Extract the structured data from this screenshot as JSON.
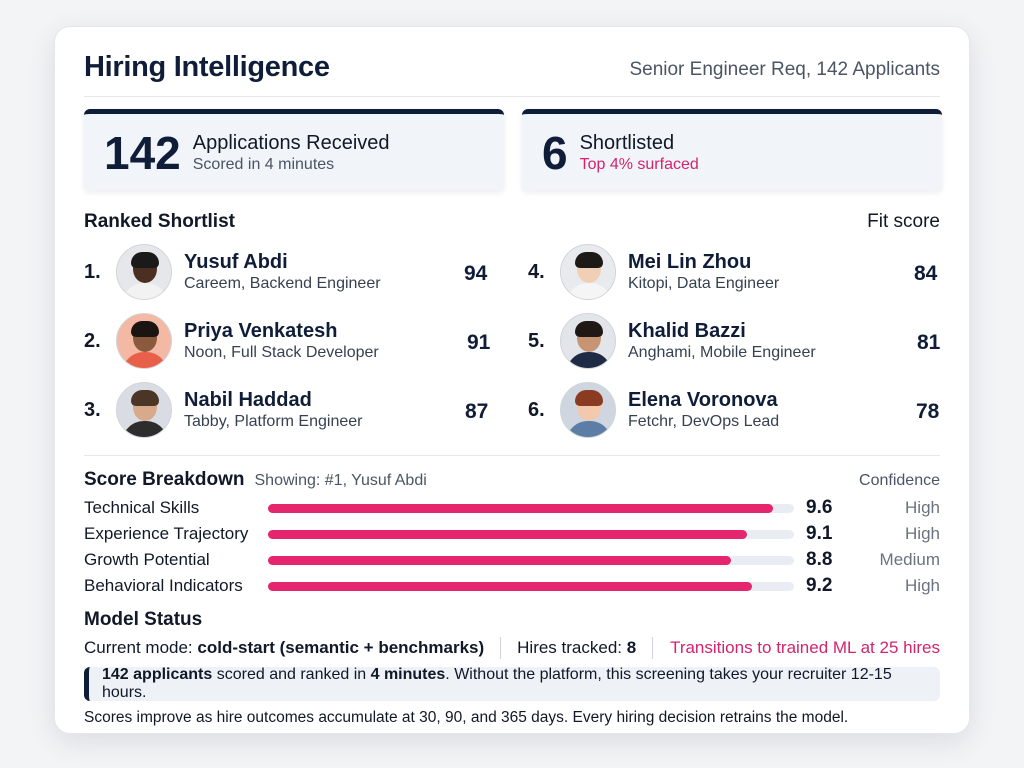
{
  "header": {
    "title": "Hiring Intelligence",
    "subtitle": "Senior Engineer Req, 142 Applicants"
  },
  "stats": [
    {
      "number": "142",
      "label": "Applications Received",
      "sub": "Scored in 4 minutes"
    },
    {
      "number": "6",
      "label": "Shortlisted",
      "sub": "Top 4% surfaced"
    }
  ],
  "shortlist": {
    "title": "Ranked Shortlist",
    "fit_label": "Fit score",
    "candidates": [
      {
        "rank": "1.",
        "name": "Yusuf Abdi",
        "role": "Careem, Backend Engineer",
        "score": "94"
      },
      {
        "rank": "2.",
        "name": "Priya Venkatesh",
        "role": "Noon, Full Stack Developer",
        "score": "91"
      },
      {
        "rank": "3.",
        "name": "Nabil Haddad",
        "role": "Tabby, Platform Engineer",
        "score": "87"
      },
      {
        "rank": "4.",
        "name": "Mei Lin Zhou",
        "role": "Kitopi, Data Engineer",
        "score": "84"
      },
      {
        "rank": "5.",
        "name": "Khalid Bazzi",
        "role": "Anghami, Mobile Engineer",
        "score": "81"
      },
      {
        "rank": "6.",
        "name": "Elena Voronova",
        "role": "Fetchr, DevOps Lead",
        "score": "78"
      }
    ]
  },
  "breakdown": {
    "title": "Score Breakdown",
    "showing": "Showing: #1, Yusuf Abdi",
    "confidence_label": "Confidence",
    "rows": [
      {
        "label": "Technical Skills",
        "value": "9.6",
        "fraction": 0.96,
        "confidence": "High"
      },
      {
        "label": "Experience Trajectory",
        "value": "9.1",
        "fraction": 0.91,
        "confidence": "High"
      },
      {
        "label": "Growth Potential",
        "value": "8.8",
        "fraction": 0.88,
        "confidence": "Medium"
      },
      {
        "label": "Behavioral Indicators",
        "value": "9.2",
        "fraction": 0.92,
        "confidence": "High"
      }
    ]
  },
  "model_status": {
    "title": "Model Status",
    "mode_label": "Current mode:",
    "mode_value": "cold-start (semantic + benchmarks)",
    "hires_label": "Hires tracked:",
    "hires_value": "8",
    "transition": "Transitions to trained ML at 25 hires"
  },
  "callout": {
    "part1_bold": "142 applicants",
    "part2": " scored and ranked in ",
    "part3_bold": "4 minutes",
    "part4": ". Without the platform, this screening takes your recruiter 12-15 hours."
  },
  "footnote": "Scores improve as hire outcomes accumulate at 30, 90, and 365 days. Every hiring decision retrains the model.",
  "colors": {
    "navy": "#0f1d38",
    "accent": "#e6256f",
    "accent_text": "#d3246e"
  },
  "avatars": [
    {
      "skin": "#4a2f22",
      "hair": "#1a1a1a",
      "shirt": "#f2f2f2",
      "bg": "#e5e7eb"
    },
    {
      "skin": "#8a5a3c",
      "hair": "#1c1410",
      "shirt": "#e8604a",
      "bg": "#f3b9a4"
    },
    {
      "skin": "#d8a98a",
      "hair": "#4a3526",
      "shirt": "#2d2d2d",
      "bg": "#d9dde3"
    },
    {
      "skin": "#f0cfb4",
      "hair": "#1d1a18",
      "shirt": "#f5f5f5",
      "bg": "#e8eaee"
    },
    {
      "skin": "#c79574",
      "hair": "#1f1814",
      "shirt": "#1f2a44",
      "bg": "#e2e5ea"
    },
    {
      "skin": "#f2c9ad",
      "hair": "#8b3b22",
      "shirt": "#5c7ea6",
      "bg": "#cfd6df"
    }
  ]
}
